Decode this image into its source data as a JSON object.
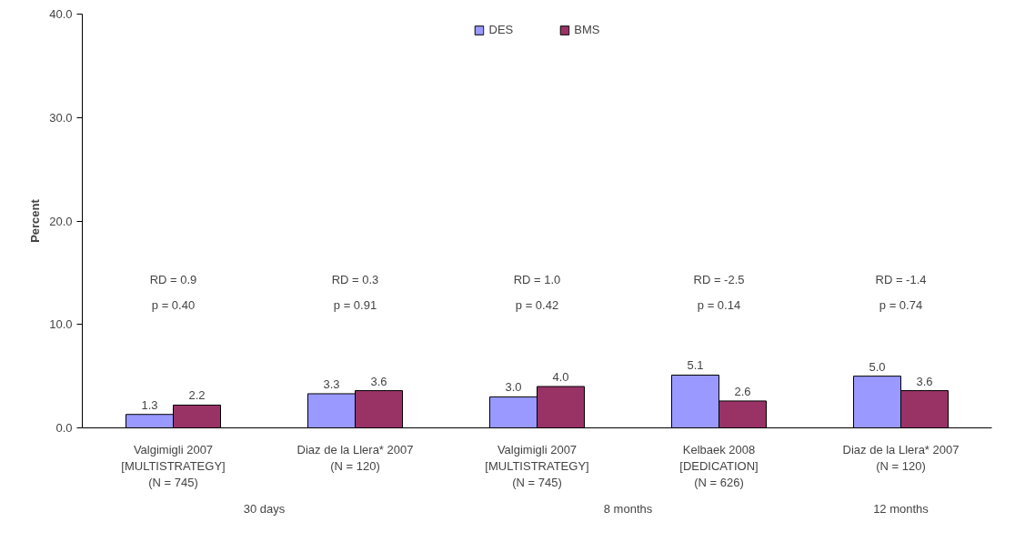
{
  "chart_data": {
    "type": "bar",
    "ylabel": "Percent",
    "categories": [
      "Valgimigli 2007\n[MULTISTRATEGY]\n(N = 745)",
      "Diaz de la Llera* 2007\n(N = 120)",
      "Valgimigli 2007\n[MULTISTRATEGY]\n(N = 745)",
      "Kelbaek 2008\n[DEDICATION]\n(N = 626)",
      "Diaz de la Llera* 2007\n(N = 120)"
    ],
    "series": [
      {
        "name": "DES",
        "color": "#9999ff",
        "values": [
          1.3,
          3.3,
          3.0,
          5.1,
          5.0
        ],
        "value_labels": [
          "1.3",
          "3.3",
          "3.0",
          "5.1",
          "5.0"
        ]
      },
      {
        "name": "BMS",
        "color": "#993366",
        "values": [
          2.2,
          3.6,
          4.0,
          2.6,
          3.6
        ],
        "value_labels": [
          "2.2",
          "3.6",
          "4.0",
          "2.6",
          "3.6"
        ]
      }
    ],
    "annotations": [
      "RD = 0.9\np = 0.40",
      "RD = 0.3\np = 0.91",
      "RD = 1.0\np = 0.42",
      "RD = -2.5\np = 0.14",
      "RD = -1.4\np = 0.74",
      "30 days",
      "8 months",
      "12 months"
    ],
    "ylim": [
      0,
      40
    ],
    "yticks": [
      {
        "value": 0,
        "label": "0.0"
      },
      {
        "value": 10,
        "label": "10.0"
      },
      {
        "value": 20,
        "label": "20.0"
      },
      {
        "value": 30,
        "label": "30.0"
      },
      {
        "value": 40,
        "label": "40.0"
      }
    ],
    "grid": false,
    "legend": "top"
  }
}
